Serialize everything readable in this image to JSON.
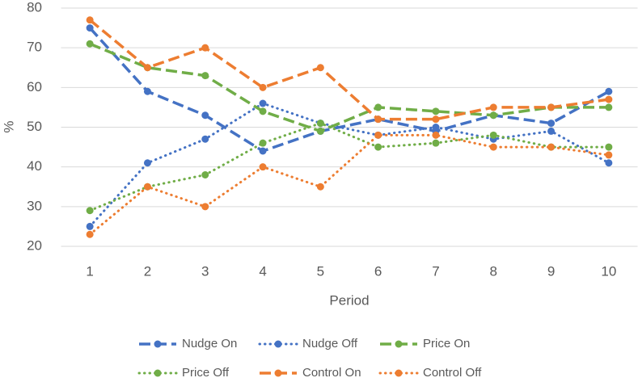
{
  "chart_data": {
    "type": "line",
    "x_label": "Period",
    "y_label": "%",
    "categories": [
      "1",
      "2",
      "3",
      "4",
      "5",
      "6",
      "7",
      "8",
      "9",
      "10"
    ],
    "ylim": [
      20,
      80
    ],
    "yticks": [
      20,
      30,
      40,
      50,
      60,
      70,
      80
    ],
    "grid": true,
    "legend": "bottom",
    "series": [
      {
        "name": "Nudge On",
        "color": "#4472c4",
        "style": "dashed",
        "values": [
          75,
          59,
          53,
          44,
          49,
          52,
          49,
          53,
          51,
          59
        ]
      },
      {
        "name": "Nudge Off",
        "color": "#4472c4",
        "style": "dotted",
        "values": [
          25,
          41,
          47,
          56,
          51,
          48,
          50,
          47,
          49,
          41
        ]
      },
      {
        "name": "Price On",
        "color": "#70ad47",
        "style": "dashed",
        "values": [
          71,
          65,
          63,
          54,
          49,
          55,
          54,
          53,
          55,
          55
        ]
      },
      {
        "name": "Price Off",
        "color": "#70ad47",
        "style": "dotted",
        "values": [
          29,
          35,
          38,
          46,
          51,
          45,
          46,
          48,
          45,
          45
        ]
      },
      {
        "name": "Control On",
        "color": "#ed7d31",
        "style": "dashed",
        "values": [
          77,
          65,
          70,
          60,
          65,
          52,
          52,
          55,
          55,
          57
        ]
      },
      {
        "name": "Control Off",
        "color": "#ed7d31",
        "style": "dotted",
        "values": [
          23,
          35,
          30,
          40,
          35,
          48,
          48,
          45,
          45,
          43
        ]
      }
    ]
  }
}
